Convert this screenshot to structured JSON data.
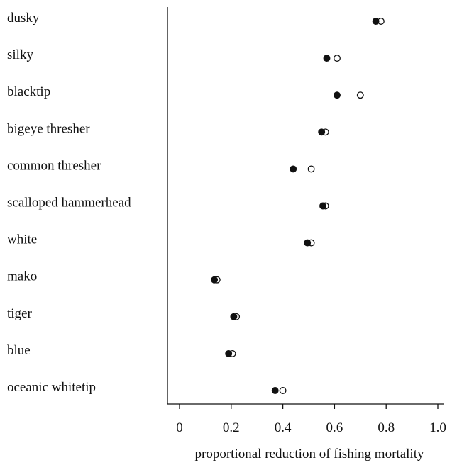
{
  "chart_data": {
    "type": "scatter",
    "title": "",
    "xlabel": "proportional reduction of fishing mortality",
    "ylabel": "",
    "xlim": [
      0,
      1.0
    ],
    "xticks": [
      "0",
      "0.2",
      "0.4",
      "0.6",
      "0.8",
      "1.0"
    ],
    "grid": false,
    "legend": "none",
    "categories": [
      "dusky",
      "silky",
      "blacktip",
      "bigeye thresher",
      "common thresher",
      "scalloped hammerhead",
      "white",
      "mako",
      "tiger",
      "blue",
      "oceanic whitetip"
    ],
    "series": [
      {
        "marker": "filled-circle",
        "color": "#111111",
        "values": [
          0.76,
          0.57,
          0.61,
          0.55,
          0.44,
          0.555,
          0.495,
          0.135,
          0.21,
          0.19,
          0.37
        ]
      },
      {
        "marker": "open-circle",
        "color": "#111111",
        "values": [
          0.78,
          0.61,
          0.7,
          0.565,
          0.51,
          0.565,
          0.51,
          0.145,
          0.22,
          0.205,
          0.4
        ]
      }
    ]
  }
}
